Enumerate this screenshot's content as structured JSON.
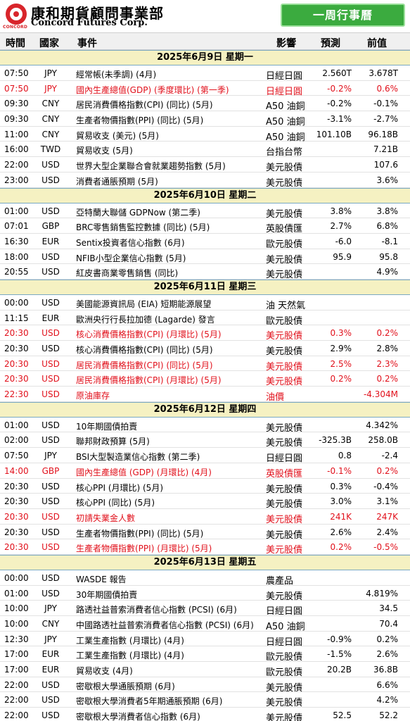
{
  "header": {
    "logo_text": "CONCORD",
    "company_cn": "康和期貨顧問事業部",
    "company_en": "Concord Futures Corp.",
    "badge": "一周行事曆"
  },
  "columns": {
    "time": "時間",
    "country": "國家",
    "event": "事件",
    "impact": "影響",
    "forecast": "預測",
    "previous": "前值"
  },
  "colors": {
    "red": "#e1101b",
    "day_band": "#f5f1c2",
    "badge": "#3bab3f",
    "brand": "#d8252b"
  },
  "days": [
    {
      "label": "2025年6月9日 星期一",
      "rows": [
        {
          "time": "07:50",
          "country": "JPY",
          "event": "經常帳(未季調) (4月)",
          "impact": "日經日圓",
          "forecast": "2.560T",
          "previous": "3.678T",
          "red": false
        },
        {
          "time": "07:50",
          "country": "JPY",
          "event": "國內生產總值(GDP) (季度環比) (第一季)",
          "impact": "日經日圓",
          "forecast": "-0.2%",
          "previous": "0.6%",
          "red": true
        },
        {
          "time": "09:30",
          "country": "CNY",
          "event": "居民消費價格指數(CPI) (同比) (5月)",
          "impact": "A50 油銅",
          "forecast": "-0.2%",
          "previous": "-0.1%",
          "red": false
        },
        {
          "time": "09:30",
          "country": "CNY",
          "event": "生產者物價指數(PPI) (同比) (5月)",
          "impact": "A50 油銅",
          "forecast": "-3.1%",
          "previous": "-2.7%",
          "red": false
        },
        {
          "time": "11:00",
          "country": "CNY",
          "event": "貿易收支 (美元) (5月)",
          "impact": "A50 油銅",
          "forecast": "101.10B",
          "previous": "96.18B",
          "red": false
        },
        {
          "time": "16:00",
          "country": "TWD",
          "event": "貿易收支 (5月)",
          "impact": "台指台幣",
          "forecast": "",
          "previous": "7.21B",
          "red": false
        },
        {
          "time": "22:00",
          "country": "USD",
          "event": "世界大型企業聯合會就業趨勢指數 (5月)",
          "impact": "美元股債",
          "forecast": "",
          "previous": "107.6",
          "red": false
        },
        {
          "time": "23:00",
          "country": "USD",
          "event": "消費者通脹預期 (5月)",
          "impact": "美元股債",
          "forecast": "",
          "previous": "3.6%",
          "red": false
        }
      ]
    },
    {
      "label": "2025年6月10日 星期二",
      "rows": [
        {
          "time": "01:00",
          "country": "USD",
          "event": "亞特蘭大聯儲 GDPNow (第二季)",
          "impact": "美元股債",
          "forecast": "3.8%",
          "previous": "3.8%",
          "red": false
        },
        {
          "time": "07:01",
          "country": "GBP",
          "event": "BRC零售銷售監控數據 (同比) (5月)",
          "impact": "英股債匯",
          "forecast": "2.7%",
          "previous": "6.8%",
          "red": false
        },
        {
          "time": "16:30",
          "country": "EUR",
          "event": "Sentix投資者信心指數 (6月)",
          "impact": "歐元股債",
          "forecast": "-6.0",
          "previous": "-8.1",
          "red": false
        },
        {
          "time": "18:00",
          "country": "USD",
          "event": "NFIB小型企業信心指數 (5月)",
          "impact": "美元股債",
          "forecast": "95.9",
          "previous": "95.8",
          "red": false
        },
        {
          "time": "20:55",
          "country": "USD",
          "event": "紅皮書商業零售銷售 (同比)",
          "impact": "美元股債",
          "forecast": "",
          "previous": "4.9%",
          "red": false
        }
      ]
    },
    {
      "label": "2025年6月11日 星期三",
      "rows": [
        {
          "time": "00:00",
          "country": "USD",
          "event": "美國能源資訊局 (EIA) 短期能源展望",
          "impact": "油 天然氣",
          "forecast": "",
          "previous": "",
          "red": false
        },
        {
          "time": "11:15",
          "country": "EUR",
          "event": "歐洲央行行長拉加德 (Lagarde) 發言",
          "impact": "歐元股債",
          "forecast": "",
          "previous": "",
          "red": false
        },
        {
          "time": "20:30",
          "country": "USD",
          "event": "核心消費價格指數(CPI) (月環比) (5月)",
          "impact": "美元股債",
          "forecast": "0.3%",
          "previous": "0.2%",
          "red": true
        },
        {
          "time": "20:30",
          "country": "USD",
          "event": "核心消費價格指數(CPI) (同比) (5月)",
          "impact": "美元股債",
          "forecast": "2.9%",
          "previous": "2.8%",
          "red": false
        },
        {
          "time": "20:30",
          "country": "USD",
          "event": "居民消費價格指數(CPI) (同比) (5月)",
          "impact": "美元股債",
          "forecast": "2.5%",
          "previous": "2.3%",
          "red": true
        },
        {
          "time": "20:30",
          "country": "USD",
          "event": "居民消費價格指數(CPI) (月環比) (5月)",
          "impact": "美元股債",
          "forecast": "0.2%",
          "previous": "0.2%",
          "red": true
        },
        {
          "time": "22:30",
          "country": "USD",
          "event": "原油庫存",
          "impact": "油價",
          "forecast": "",
          "previous": "-4.304M",
          "red": true
        }
      ]
    },
    {
      "label": "2025年6月12日 星期四",
      "rows": [
        {
          "time": "01:00",
          "country": "USD",
          "event": "10年期國債拍賣",
          "impact": "美元股債",
          "forecast": "",
          "previous": "4.342%",
          "red": false
        },
        {
          "time": "02:00",
          "country": "USD",
          "event": "聯邦財政預算 (5月)",
          "impact": "美元股債",
          "forecast": "-325.3B",
          "previous": "258.0B",
          "red": false
        },
        {
          "time": "07:50",
          "country": "JPY",
          "event": "BSI大型製造業信心指數 (第二季)",
          "impact": "日經日圓",
          "forecast": "0.8",
          "previous": "-2.4",
          "red": false
        },
        {
          "time": "14:00",
          "country": "GBP",
          "event": "國內生產總值 (GDP) (月環比) (4月)",
          "impact": "英股債匯",
          "forecast": "-0.1%",
          "previous": "0.2%",
          "red": true
        },
        {
          "time": "20:30",
          "country": "USD",
          "event": "核心PPI (月環比) (5月)",
          "impact": "美元股債",
          "forecast": "0.3%",
          "previous": "-0.4%",
          "red": false
        },
        {
          "time": "20:30",
          "country": "USD",
          "event": "核心PPI (同比) (5月)",
          "impact": "美元股債",
          "forecast": "3.0%",
          "previous": "3.1%",
          "red": false
        },
        {
          "time": "20:30",
          "country": "USD",
          "event": "初請失業金人數",
          "impact": "美元股債",
          "forecast": "241K",
          "previous": "247K",
          "red": true
        },
        {
          "time": "20:30",
          "country": "USD",
          "event": "生產者物價指數(PPI) (同比) (5月)",
          "impact": "美元股債",
          "forecast": "2.6%",
          "previous": "2.4%",
          "red": false
        },
        {
          "time": "20:30",
          "country": "USD",
          "event": "生產者物價指數(PPI) (月環比) (5月)",
          "impact": "美元股債",
          "forecast": "0.2%",
          "previous": "-0.5%",
          "red": true
        }
      ]
    },
    {
      "label": "2025年6月13日 星期五",
      "rows": [
        {
          "time": "00:00",
          "country": "USD",
          "event": "WASDE 報告",
          "impact": "農產品",
          "forecast": "",
          "previous": "",
          "red": false
        },
        {
          "time": "01:00",
          "country": "USD",
          "event": "30年期國債拍賣",
          "impact": "美元股債",
          "forecast": "",
          "previous": "4.819%",
          "red": false
        },
        {
          "time": "10:00",
          "country": "JPY",
          "event": "路透社益普索消費者信心指數 (PCSI) (6月)",
          "impact": "日經日圓",
          "forecast": "",
          "previous": "34.5",
          "red": false
        },
        {
          "time": "10:00",
          "country": "CNY",
          "event": "中國路透社益普索消費者信心指數 (PCSI) (6月)",
          "impact": "A50 油銅",
          "forecast": "",
          "previous": "70.4",
          "red": false
        },
        {
          "time": "12:30",
          "country": "JPY",
          "event": "工業生產指數 (月環比) (4月)",
          "impact": "日經日圓",
          "forecast": "-0.9%",
          "previous": "0.2%",
          "red": false
        },
        {
          "time": "17:00",
          "country": "EUR",
          "event": "工業生產指數 (月環比) (4月)",
          "impact": "歐元股債",
          "forecast": "-1.5%",
          "previous": "2.6%",
          "red": false
        },
        {
          "time": "17:00",
          "country": "EUR",
          "event": "貿易收支 (4月)",
          "impact": "歐元股債",
          "forecast": "20.2B",
          "previous": "36.8B",
          "red": false
        },
        {
          "time": "22:00",
          "country": "USD",
          "event": "密歇根大學通脹預期 (6月)",
          "impact": "美元股債",
          "forecast": "",
          "previous": "6.6%",
          "red": false
        },
        {
          "time": "22:00",
          "country": "USD",
          "event": "密歇根大學消費者5年期通脹預期 (6月)",
          "impact": "美元股債",
          "forecast": "",
          "previous": "4.2%",
          "red": false
        },
        {
          "time": "22:00",
          "country": "USD",
          "event": "密歇根大學消費者信心指數 (6月)",
          "impact": "美元股債",
          "forecast": "52.5",
          "previous": "52.2",
          "red": false
        }
      ]
    }
  ]
}
